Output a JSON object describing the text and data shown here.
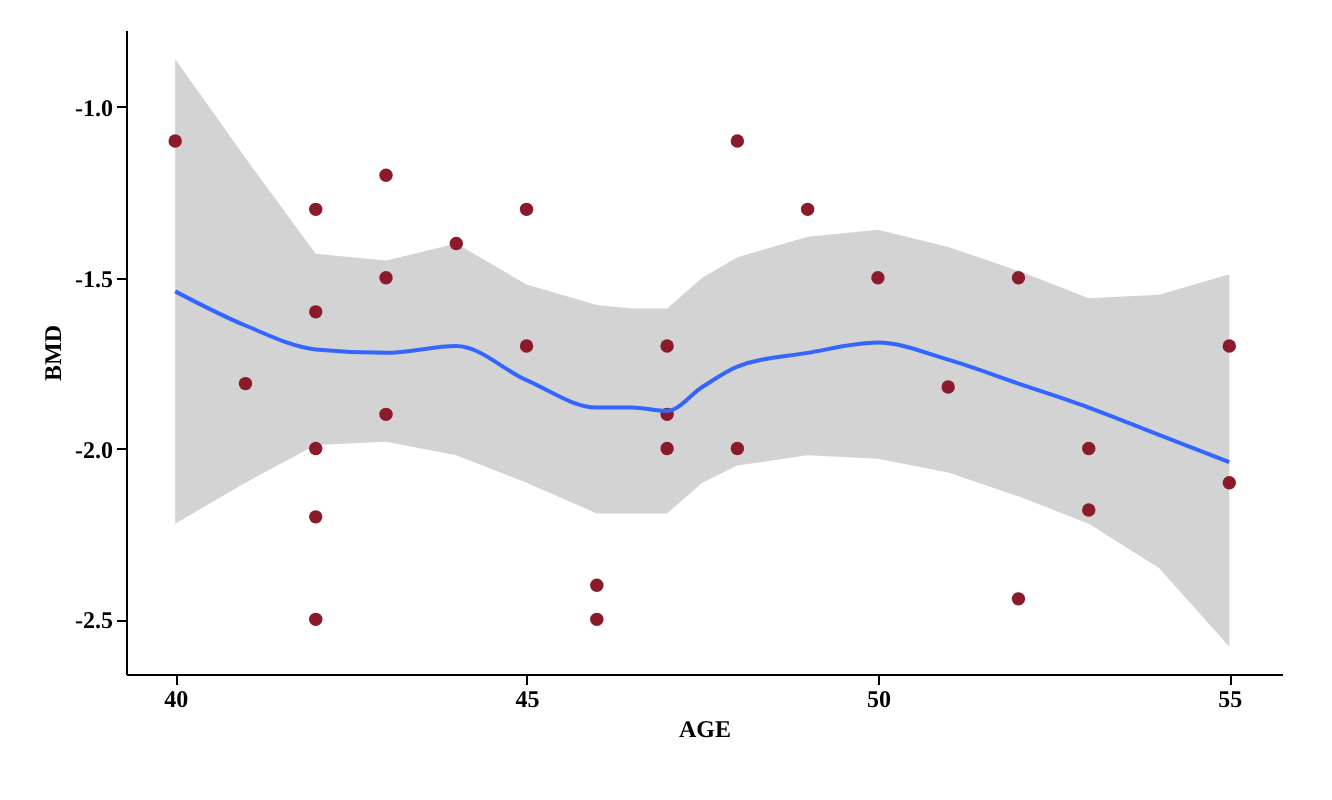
{
  "chart_data": {
    "type": "scatter",
    "xlabel": "AGE",
    "ylabel": "BMD",
    "xlim": [
      39.3,
      55.75
    ],
    "ylim": [
      -2.66,
      -0.775
    ],
    "xticks": [
      40,
      45,
      50,
      55
    ],
    "yticks": [
      {
        "value": -2.5,
        "label": "-2.5"
      },
      {
        "value": -2.0,
        "label": "-2.0"
      },
      {
        "value": -1.5,
        "label": "-1.5"
      },
      {
        "value": -1.0,
        "label": "-1.0"
      }
    ],
    "grid": false,
    "series": [
      {
        "marker": "circle",
        "color": "#8b1a2b",
        "x": [
          40,
          41,
          42,
          42,
          42,
          42,
          42,
          43,
          43,
          43,
          44,
          45,
          45,
          46,
          46,
          47,
          47,
          47,
          48,
          48,
          49,
          50,
          51,
          52,
          52,
          53,
          53,
          55,
          55
        ],
        "values": [
          -1.1,
          -1.81,
          -1.3,
          -1.6,
          -2.0,
          -2.2,
          -2.5,
          -1.2,
          -1.5,
          -1.9,
          -1.4,
          -1.3,
          -1.7,
          -2.4,
          -2.5,
          -1.7,
          -1.9,
          -2.0,
          -1.1,
          -2.0,
          -1.3,
          -1.5,
          -1.82,
          -1.5,
          -2.44,
          -2.0,
          -2.18,
          -1.7,
          -2.1
        ]
      },
      {
        "type": "line",
        "color": "#3366ff",
        "x": [
          40,
          41,
          42,
          43,
          44,
          45,
          46,
          46.5,
          47,
          47.5,
          48,
          49,
          50,
          51,
          52,
          53,
          54,
          55
        ],
        "values": [
          -1.54,
          -1.64,
          -1.71,
          -1.72,
          -1.7,
          -1.8,
          -1.88,
          -1.88,
          -1.89,
          -1.82,
          -1.76,
          -1.72,
          -1.69,
          -1.74,
          -1.81,
          -1.88,
          -1.96,
          -2.04
        ],
        "lower": [
          -2.22,
          -2.1,
          -1.99,
          -1.98,
          -2.02,
          -2.1,
          -2.19,
          -2.19,
          -2.19,
          -2.1,
          -2.05,
          -2.02,
          -2.03,
          -2.07,
          -2.14,
          -2.22,
          -2.35,
          -2.58
        ],
        "upper": [
          -0.86,
          -1.15,
          -1.43,
          -1.45,
          -1.4,
          -1.52,
          -1.58,
          -1.59,
          -1.59,
          -1.5,
          -1.44,
          -1.38,
          -1.36,
          -1.41,
          -1.48,
          -1.56,
          -1.55,
          -1.49
        ]
      }
    ]
  }
}
